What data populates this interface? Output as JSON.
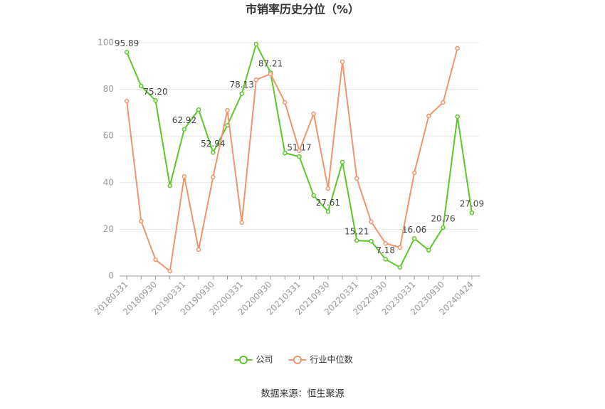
{
  "chart_data": {
    "type": "line",
    "title": "市销率历史分位（%）",
    "categories": [
      "20180331",
      null,
      "20180930",
      null,
      "20190331",
      null,
      "20190930",
      null,
      "20200331",
      null,
      "20200930",
      null,
      "20210331",
      null,
      "20210930",
      null,
      "20220331",
      null,
      "20220930",
      null,
      "20230331",
      null,
      "20230930",
      null,
      "20240424"
    ],
    "series": [
      {
        "name": "公司",
        "color": "#5cc72b",
        "values": [
          95.89,
          81.4,
          75.2,
          38.7,
          62.92,
          71.3,
          52.94,
          64.6,
          78.13,
          99.4,
          87.21,
          52.7,
          51.17,
          34.5,
          27.61,
          48.8,
          15.21,
          14.9,
          7.18,
          3.7,
          16.06,
          11.0,
          20.76,
          68.3,
          27.09
        ],
        "value_labels": [
          "95.89",
          null,
          "75.20",
          null,
          "62.92",
          null,
          "52.94",
          null,
          "78.13",
          null,
          "87.21",
          null,
          "51.17",
          null,
          "27.61",
          null,
          "15.21",
          null,
          "7.18",
          null,
          "16.06",
          null,
          "20.76",
          null,
          "27.09"
        ]
      },
      {
        "name": "行业中位数",
        "color": "#f0956a",
        "values": [
          75.0,
          23.5,
          7.0,
          2.1,
          42.7,
          11.3,
          42.4,
          71.0,
          22.9,
          84.1,
          86.6,
          74.4,
          53.7,
          69.5,
          37.5,
          91.8,
          41.8,
          23.2,
          14.0,
          12.2,
          44.2,
          68.6,
          74.4,
          97.6,
          null
        ]
      }
    ],
    "ylim": [
      0,
      100
    ],
    "yticks": [
      0,
      20,
      40,
      60,
      80,
      100
    ],
    "grid": true,
    "legend": "bottom",
    "source": "数据来源：恒生聚源"
  }
}
